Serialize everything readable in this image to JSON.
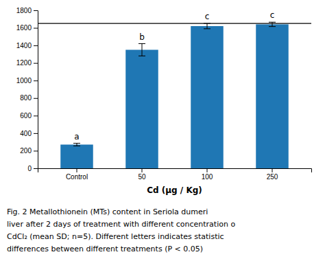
{
  "chart_data": {
    "type": "bar",
    "categories": [
      "Control",
      "50",
      "100",
      "250"
    ],
    "values": [
      270,
      1350,
      1620,
      1640
    ],
    "errors": [
      15,
      70,
      30,
      25
    ],
    "annotations": [
      "a",
      "b",
      "c",
      "c"
    ],
    "reference_line": 1650,
    "xlabel": "Cd (µg / Kg)",
    "ylim": [
      0,
      1800
    ],
    "yticks": [
      0,
      200,
      400,
      600,
      800,
      1000,
      1200,
      1400,
      1600,
      1800
    ],
    "grid": false,
    "caption": [
      "Fig. 2  Metallothionein (MTs) content in Seriola dumeri",
      "liver after 2 days of treatment with different concentration o",
      "CdCl₂ (mean SD; n=5). Different letters indicates statistic",
      "differences between different treatments (P < 0.05)"
    ]
  }
}
